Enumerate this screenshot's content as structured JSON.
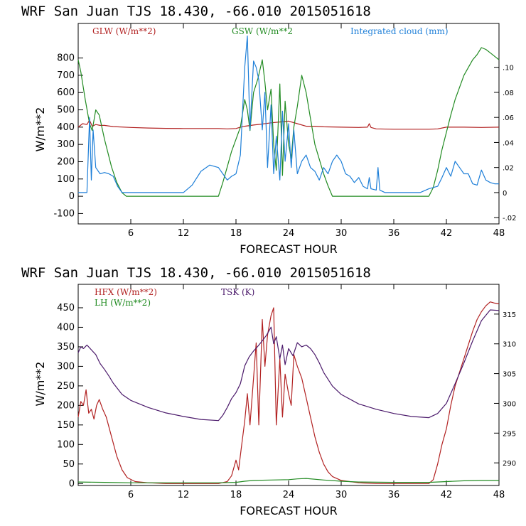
{
  "chart_data": [
    {
      "type": "line",
      "title": "WRF  San Juan TJS  18.430, -66.010  2015051618",
      "xlabel": "FORECAST HOUR",
      "ylabel": "W/m**2",
      "xlim": [
        0,
        48
      ],
      "ylim": [
        -160,
        1000
      ],
      "y2lim": [
        -0.025,
        0.135
      ],
      "x_ticks": [
        "6",
        "12",
        "18",
        "24",
        "30",
        "36",
        "42",
        "48"
      ],
      "x_tick_values": [
        6,
        12,
        18,
        24,
        30,
        36,
        42,
        48
      ],
      "y_ticks": [
        "800",
        "700",
        "600",
        "500",
        "400",
        "300",
        "200",
        "100",
        "0",
        "-100"
      ],
      "y_tick_values": [
        800,
        700,
        600,
        500,
        400,
        300,
        200,
        100,
        0,
        -100
      ],
      "y2_ticks": [
        ".10",
        ".08",
        ".06",
        ".04",
        ".02",
        "0",
        "-.02"
      ],
      "y2_tick_values": [
        0.1,
        0.08,
        0.06,
        0.04,
        0.02,
        0,
        -0.02
      ],
      "series": [
        {
          "name": "GLW (W/m**2)",
          "color": "#b22222",
          "axis": "left",
          "x": [
            0,
            0.5,
            1,
            1.3,
            1.6,
            2,
            2.5,
            3,
            4,
            6,
            8,
            10,
            12,
            14,
            16,
            17,
            18,
            18.5,
            19,
            20,
            21,
            22,
            23,
            24,
            25,
            26,
            27,
            28,
            30,
            32,
            33,
            33.2,
            33.4,
            34,
            36,
            38,
            40,
            41,
            42,
            43,
            44,
            46,
            48
          ],
          "values": [
            400,
            420,
            415,
            440,
            405,
            415,
            410,
            410,
            403,
            398,
            395,
            393,
            392,
            392,
            392,
            390,
            392,
            400,
            405,
            412,
            418,
            425,
            430,
            435,
            420,
            405,
            405,
            402,
            400,
            398,
            400,
            420,
            398,
            390,
            388,
            388,
            388,
            390,
            400,
            400,
            400,
            398,
            400
          ]
        },
        {
          "name": "GSW (W/m**2",
          "color": "#228b22",
          "axis": "left",
          "x": [
            0,
            0.3,
            0.8,
            1.3,
            1.6,
            2.0,
            2.4,
            3,
            3.8,
            4.4,
            5,
            5.5,
            16,
            16.5,
            17,
            17.5,
            18,
            18.5,
            19,
            19.3,
            19.6,
            20,
            20.5,
            21,
            21.3,
            21.6,
            22,
            22.3,
            22.6,
            23,
            23.3,
            23.6,
            24,
            24.3,
            24.6,
            25,
            25.5,
            26,
            26.5,
            27,
            28,
            28.5,
            29,
            40,
            40.5,
            41,
            41.5,
            42,
            42.5,
            43,
            44,
            45,
            45.5,
            46,
            46.5,
            47,
            47.5,
            48
          ],
          "values": [
            790,
            720,
            560,
            420,
            380,
            500,
            470,
            330,
            170,
            80,
            20,
            0,
            0,
            80,
            170,
            260,
            330,
            400,
            560,
            500,
            380,
            600,
            680,
            790,
            660,
            500,
            620,
            300,
            150,
            650,
            120,
            550,
            300,
            220,
            400,
            520,
            700,
            600,
            450,
            300,
            130,
            60,
            0,
            0,
            50,
            150,
            270,
            370,
            470,
            560,
            700,
            790,
            820,
            860,
            850,
            830,
            810,
            790
          ]
        },
        {
          "name": "Integrated cloud (mm)",
          "color": "#1e7fd8",
          "axis": "right",
          "x": [
            0,
            1,
            1.3,
            1.5,
            1.7,
            2,
            2.5,
            3,
            3.5,
            4,
            4.5,
            5,
            6,
            12,
            13,
            14,
            15,
            16,
            16.5,
            17,
            17.5,
            18,
            18.5,
            19,
            19.3,
            19.6,
            20,
            20.3,
            20.6,
            21,
            21.3,
            21.6,
            22,
            22.3,
            22.6,
            23,
            23.3,
            23.6,
            24,
            24.3,
            24.6,
            25,
            25.5,
            26,
            26.5,
            27,
            27.5,
            28,
            28.5,
            29,
            29.5,
            30,
            30.5,
            31,
            31.5,
            32,
            32.5,
            33,
            33.2,
            33.4,
            34,
            34.2,
            34.4,
            35,
            39,
            40,
            41,
            41.5,
            42,
            42.5,
            43,
            43.5,
            44,
            44.5,
            45,
            45.5,
            46,
            46.5,
            47,
            47.5,
            48
          ],
          "values": [
            0,
            0,
            0.06,
            0.01,
            0.05,
            0.02,
            0.015,
            0.016,
            0.015,
            0.013,
            0.005,
            0,
            0,
            0,
            0.006,
            0.017,
            0.022,
            0.02,
            0.015,
            0.01,
            0.013,
            0.015,
            0.03,
            0.1,
            0.125,
            0.05,
            0.105,
            0.1,
            0.09,
            0.05,
            0.08,
            0.02,
            0.07,
            0.015,
            0.045,
            0.01,
            0.065,
            0.025,
            0.055,
            0.02,
            0.05,
            0.015,
            0.025,
            0.03,
            0.02,
            0.017,
            0.01,
            0.02,
            0.015,
            0.025,
            0.03,
            0.025,
            0.015,
            0.013,
            0.008,
            0.012,
            0.005,
            0.003,
            0.012,
            0.003,
            0.002,
            0.02,
            0.002,
            0,
            0,
            0.003,
            0.005,
            0.012,
            0.02,
            0.013,
            0.025,
            0.02,
            0.015,
            0.015,
            0.007,
            0.006,
            0.018,
            0.01,
            0.008,
            0.007,
            0.007
          ]
        }
      ]
    },
    {
      "type": "line",
      "title": "WRF  San Juan TJS  18.430, -66.010  2015051618",
      "xlabel": "FORECAST HOUR",
      "ylabel": "W/m**2",
      "xlim": [
        0,
        48
      ],
      "ylim": [
        -5,
        510
      ],
      "y2lim": [
        286.2,
        320
      ],
      "x_ticks": [
        "6",
        "12",
        "18",
        "24",
        "30",
        "36",
        "42",
        "48"
      ],
      "x_tick_values": [
        6,
        12,
        18,
        24,
        30,
        36,
        42,
        48
      ],
      "y_ticks": [
        "450",
        "400",
        "350",
        "300",
        "250",
        "200",
        "150",
        "100",
        "50",
        "0"
      ],
      "y_tick_values": [
        450,
        400,
        350,
        300,
        250,
        200,
        150,
        100,
        50,
        0
      ],
      "y2_ticks": [
        "315",
        "310",
        "305",
        "300",
        "295",
        "290"
      ],
      "y2_tick_values": [
        315,
        310,
        305,
        300,
        295,
        290
      ],
      "series": [
        {
          "name": "HFX (W/m**2)",
          "color": "#b22222",
          "axis": "left",
          "x": [
            0,
            0.3,
            0.6,
            0.9,
            1.2,
            1.5,
            1.8,
            2.1,
            2.4,
            2.8,
            3.2,
            3.8,
            4.4,
            5,
            5.6,
            6.5,
            8,
            10,
            12,
            14,
            16,
            17,
            17.5,
            18,
            18.3,
            18.6,
            19,
            19.3,
            19.6,
            20,
            20.3,
            20.6,
            21,
            21.3,
            21.6,
            22,
            22.3,
            22.6,
            23,
            23.3,
            23.6,
            24,
            24.3,
            24.6,
            25,
            25.5,
            26,
            26.5,
            27,
            27.5,
            28,
            28.5,
            29,
            30,
            32,
            34,
            36,
            38,
            40,
            40.5,
            41,
            41.5,
            42,
            42.5,
            43,
            44,
            45,
            45.5,
            46,
            46.5,
            47,
            47.5,
            48
          ],
          "values": [
            170,
            210,
            200,
            240,
            180,
            190,
            165,
            200,
            215,
            190,
            170,
            120,
            70,
            35,
            15,
            5,
            2,
            0,
            0,
            0,
            0,
            5,
            20,
            60,
            35,
            90,
            160,
            230,
            150,
            270,
            360,
            150,
            420,
            300,
            380,
            430,
            450,
            150,
            320,
            170,
            280,
            230,
            200,
            330,
            300,
            270,
            220,
            170,
            120,
            80,
            50,
            30,
            18,
            8,
            2,
            0,
            0,
            0,
            0,
            10,
            50,
            100,
            140,
            200,
            250,
            320,
            390,
            420,
            440,
            455,
            465,
            462,
            460
          ]
        },
        {
          "name": "LH (W/m**2)",
          "color": "#228b22",
          "axis": "left",
          "x": [
            0,
            3,
            6,
            12,
            16,
            18,
            19,
            20,
            22,
            24,
            25,
            26,
            28,
            30,
            32,
            36,
            40,
            42,
            44,
            46,
            48
          ],
          "values": [
            4,
            3,
            2,
            2,
            2,
            3,
            6,
            8,
            9,
            10,
            12,
            13,
            9,
            6,
            4,
            3,
            3,
            5,
            7,
            8,
            8
          ]
        },
        {
          "name": "TSK (K)",
          "color": "#4b1a6b",
          "axis": "right",
          "x": [
            0,
            0.3,
            0.6,
            1,
            1.5,
            2,
            2.5,
            3,
            3.5,
            4,
            5,
            6,
            8,
            10,
            12,
            14,
            16,
            16.5,
            17,
            17.5,
            18,
            18.5,
            19,
            19.5,
            20,
            20.5,
            21,
            21.5,
            22,
            22.3,
            22.6,
            23,
            23.3,
            23.6,
            24,
            24.5,
            25,
            25.5,
            26,
            26.5,
            27,
            27.5,
            28,
            29,
            30,
            32,
            34,
            36,
            38,
            40,
            41,
            42,
            43,
            44,
            45,
            46,
            47,
            48
          ],
          "values": [
            308.5,
            309.5,
            309.2,
            309.8,
            309,
            308.2,
            306.7,
            305.7,
            304.6,
            303.4,
            301.5,
            300.5,
            299.3,
            298.4,
            297.8,
            297.3,
            297.1,
            298,
            299.3,
            300.8,
            301.8,
            303.3,
            306.3,
            307.8,
            308.8,
            309.6,
            310.5,
            311.5,
            312.8,
            310,
            311.2,
            307.5,
            309.8,
            306.5,
            309.2,
            308,
            310.2,
            309.5,
            309.8,
            309.2,
            308.2,
            306.8,
            305.2,
            302.9,
            301.5,
            299.9,
            299,
            298.3,
            297.8,
            297.6,
            298.3,
            300,
            303.3,
            306.8,
            310.5,
            313.9,
            315.7,
            315.6
          ]
        }
      ]
    }
  ]
}
